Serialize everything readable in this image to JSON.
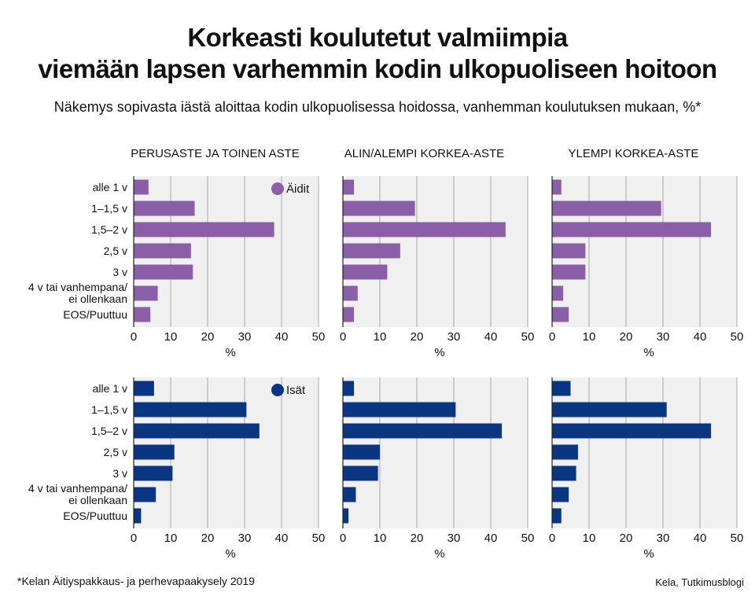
{
  "title_line1": "Korkeasti koulutetut valmiimpia",
  "title_line2": "viemään lapsen varhemmin kodin ulkopuoliseen hoitoon",
  "subtitle": "Näkemys sopivasta iästä aloittaa kodin ulkopuolisessa hoidossa, vanhemman koulutuksen mukaan, %*",
  "footnote": "*Kelan Äitiyspakkaus- ja perhevapaakysely 2019",
  "source": "Kela, Tutkimusblogi",
  "chart_data": {
    "type": "bar",
    "orientation": "horizontal",
    "panels": [
      "PERUSASTE JA TOINEN ASTE",
      "ALIN/ALEMPI KORKEA-ASTE",
      "YLEMPI KORKEA-ASTE"
    ],
    "categories": [
      [
        "alle 1 v"
      ],
      [
        "1–1,5 v"
      ],
      [
        "1,5–2 v"
      ],
      [
        "2,5 v"
      ],
      [
        "3 v"
      ],
      [
        "4 v tai vanhempana/",
        "ei ollenkaan"
      ],
      [
        "EOS/Puuttuu"
      ]
    ],
    "xlabel": "%",
    "xlim": [
      0,
      50
    ],
    "xticks": [
      0,
      10,
      20,
      30,
      40,
      50
    ],
    "rows": [
      {
        "name": "Äidit",
        "color": "#8a5fa8",
        "values": [
          [
            4,
            16.5,
            38,
            15.5,
            16,
            6.5,
            4.5
          ],
          [
            3,
            19.5,
            44,
            15.5,
            12,
            4,
            3
          ],
          [
            2.5,
            29.5,
            43,
            9,
            9,
            3,
            4.5
          ]
        ]
      },
      {
        "name": "Isät",
        "color": "#0a3580",
        "values": [
          [
            5.5,
            30.5,
            34,
            11,
            10.5,
            6,
            2
          ],
          [
            3,
            30.5,
            43,
            10,
            9.5,
            3.5,
            1.5
          ],
          [
            5,
            31,
            43,
            7,
            6.5,
            4.5,
            2.5
          ]
        ]
      }
    ]
  }
}
